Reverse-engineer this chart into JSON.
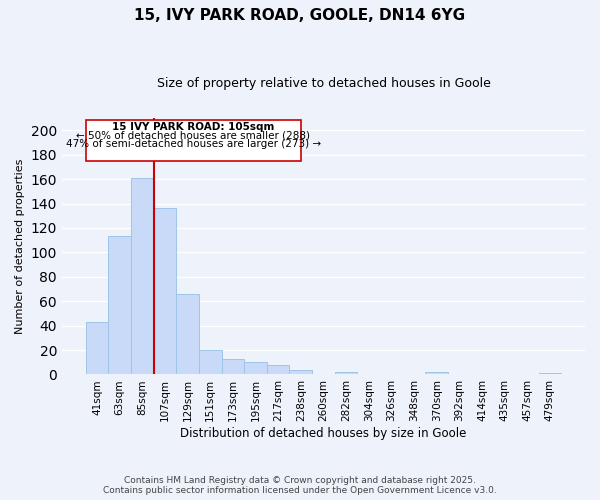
{
  "title": "15, IVY PARK ROAD, GOOLE, DN14 6YG",
  "subtitle": "Size of property relative to detached houses in Goole",
  "xlabel": "Distribution of detached houses by size in Goole",
  "ylabel": "Number of detached properties",
  "categories": [
    "41sqm",
    "63sqm",
    "85sqm",
    "107sqm",
    "129sqm",
    "151sqm",
    "173sqm",
    "195sqm",
    "217sqm",
    "238sqm",
    "260sqm",
    "282sqm",
    "304sqm",
    "326sqm",
    "348sqm",
    "370sqm",
    "392sqm",
    "414sqm",
    "435sqm",
    "457sqm",
    "479sqm"
  ],
  "values": [
    43,
    113,
    161,
    136,
    66,
    20,
    13,
    10,
    8,
    4,
    0,
    2,
    0,
    0,
    0,
    2,
    0,
    0,
    0,
    0,
    1
  ],
  "bar_color": "#c9daf8",
  "bar_edge_color": "#9fc5e8",
  "property_line_color": "#cc0000",
  "property_line_bar_index": 2,
  "ylim": [
    0,
    210
  ],
  "yticks": [
    0,
    20,
    40,
    60,
    80,
    100,
    120,
    140,
    160,
    180,
    200
  ],
  "annotation_title": "15 IVY PARK ROAD: 105sqm",
  "annotation_line1": "← 50% of detached houses are smaller (288)",
  "annotation_line2": "47% of semi-detached houses are larger (273) →",
  "footer_line1": "Contains HM Land Registry data © Crown copyright and database right 2025.",
  "footer_line2": "Contains public sector information licensed under the Open Government Licence v3.0.",
  "background_color": "#eef2fb",
  "grid_color": "#ffffff",
  "title_fontsize": 11,
  "subtitle_fontsize": 9,
  "ylabel_fontsize": 8,
  "xlabel_fontsize": 8.5,
  "tick_fontsize": 7.5,
  "footer_fontsize": 6.5
}
